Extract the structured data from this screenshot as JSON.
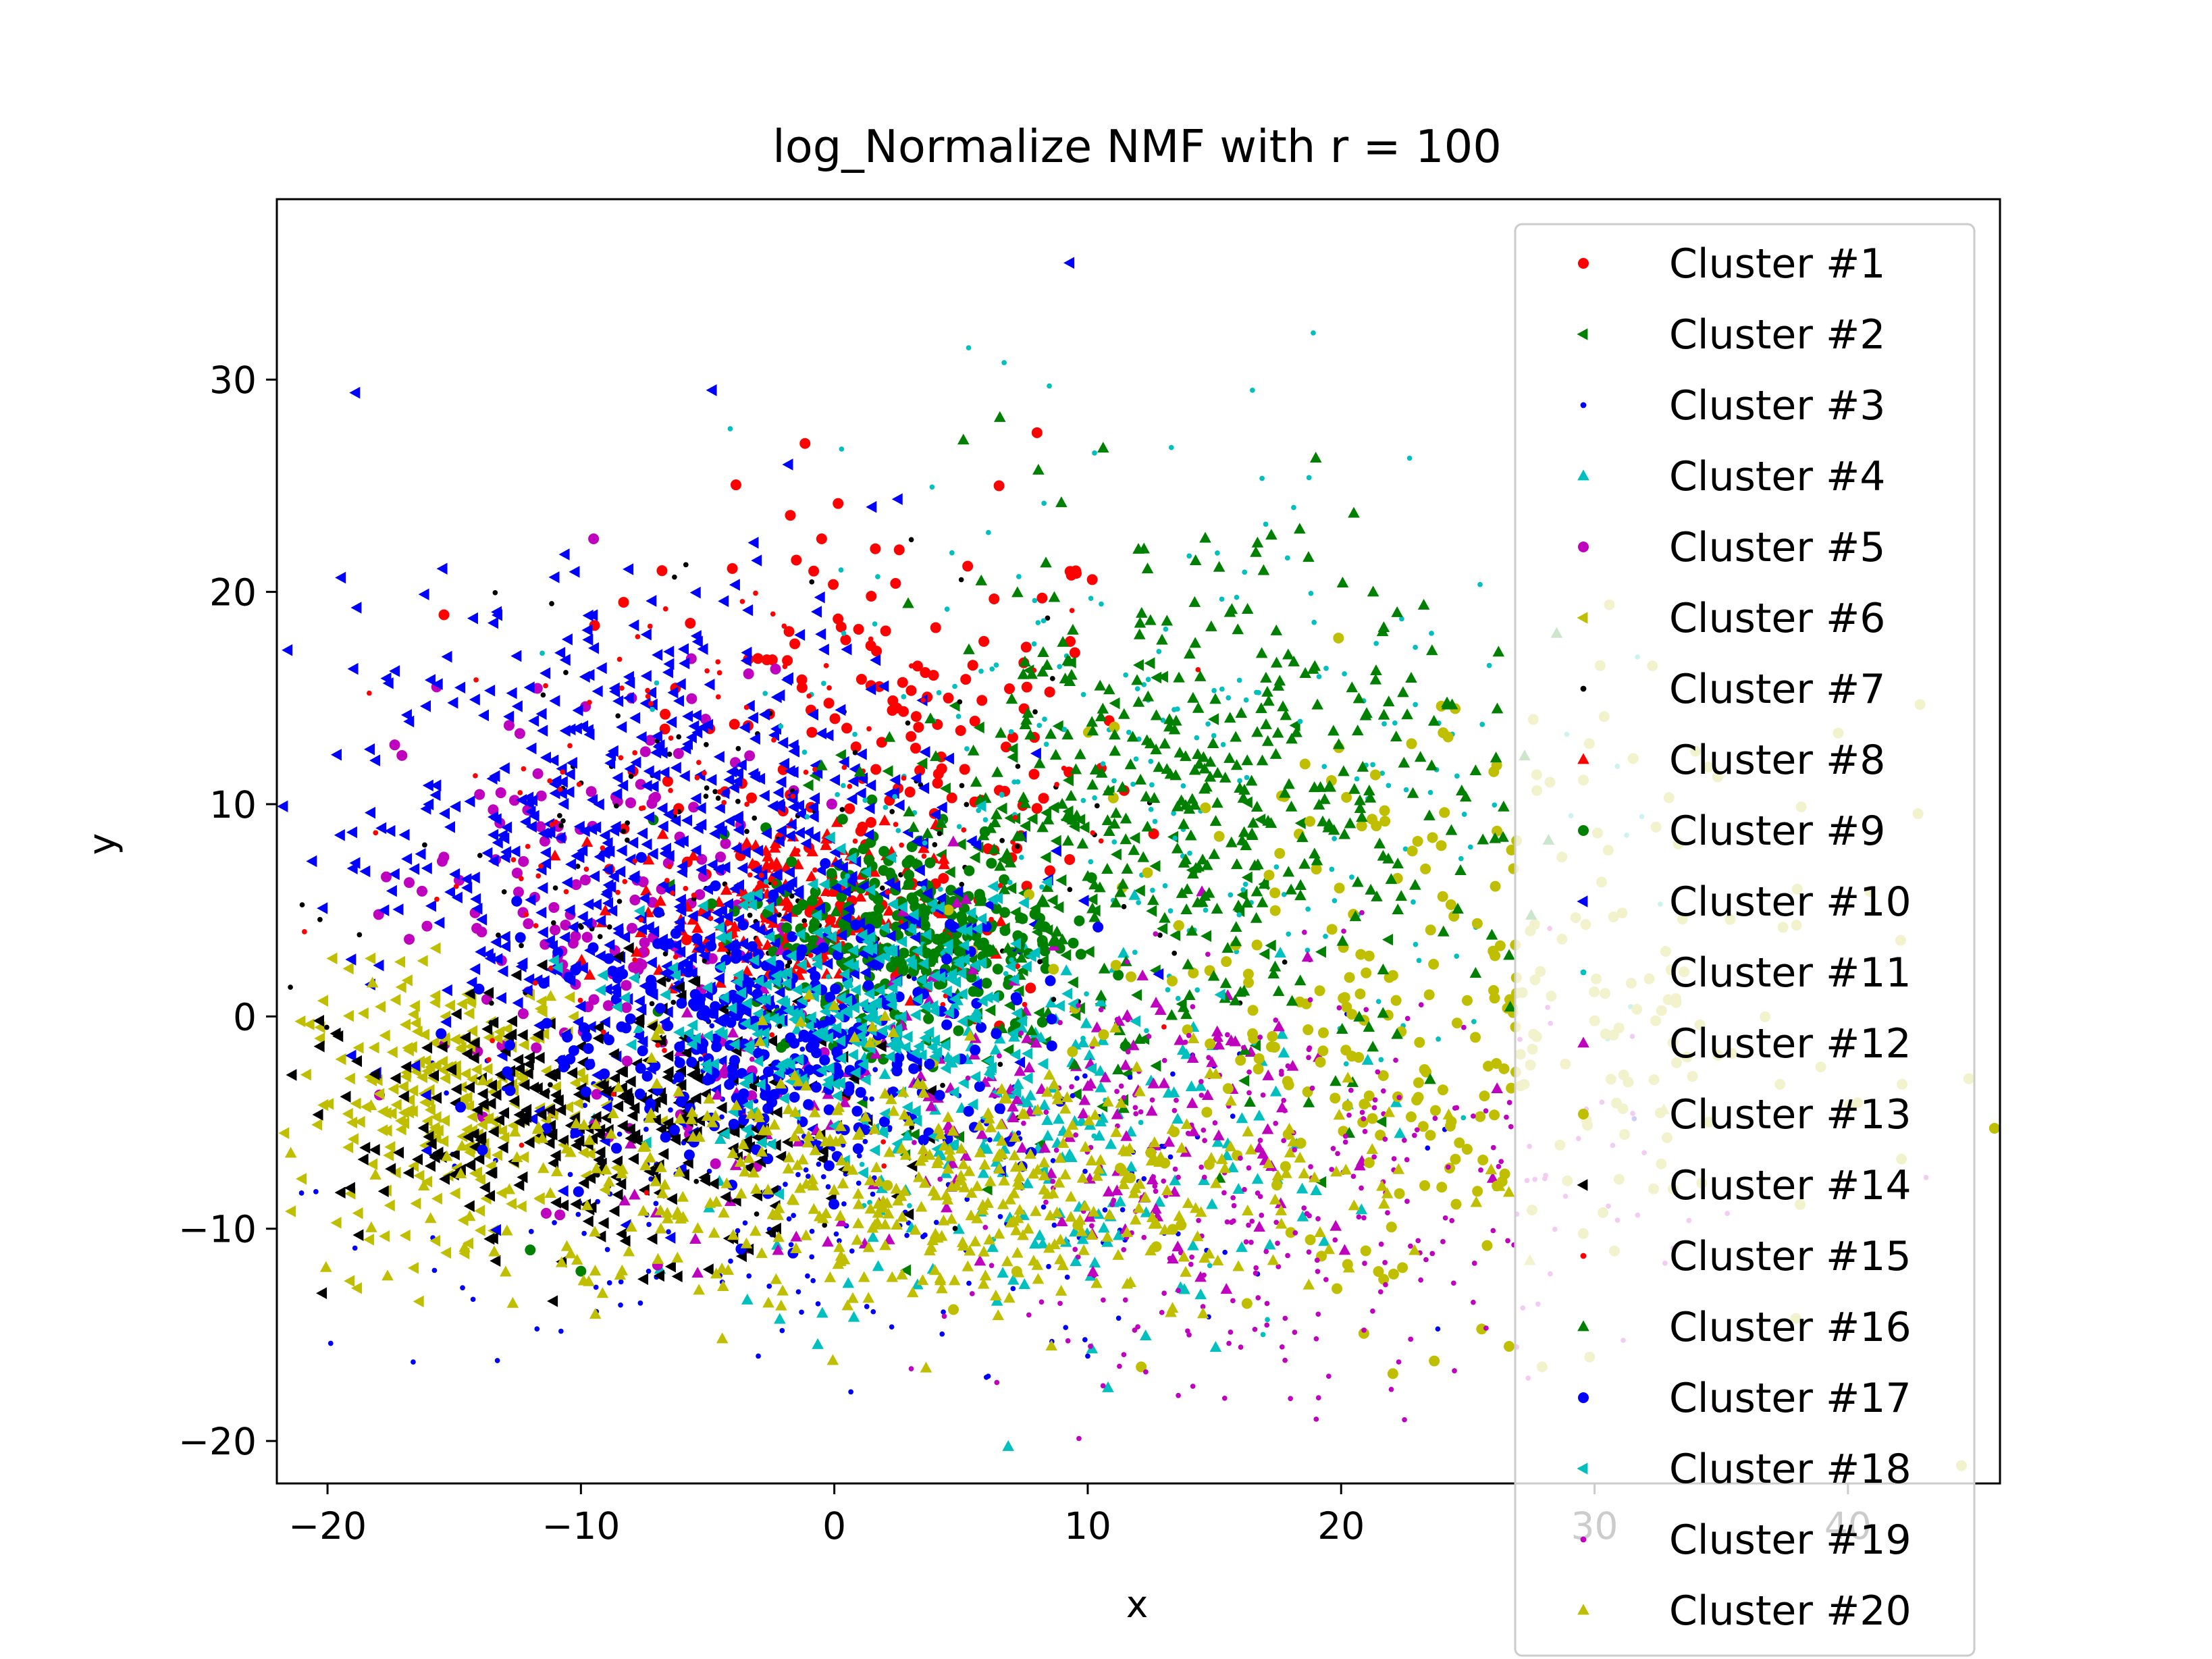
{
  "chart_data": {
    "type": "scatter",
    "title": "log_Normalize NMF with r = 100",
    "xlabel": "x",
    "ylabel": "y",
    "xlim": [
      -22,
      46
    ],
    "ylim": [
      -22,
      38.5
    ],
    "x_ticks": [
      -20,
      -10,
      0,
      10,
      20,
      30,
      40
    ],
    "y_ticks": [
      -20,
      -10,
      0,
      10,
      20,
      30
    ],
    "x_tick_labels": [
      "−20",
      "−10",
      "0",
      "10",
      "20",
      "30",
      "40"
    ],
    "y_tick_labels": [
      "−20",
      "−10",
      "0",
      "10",
      "20",
      "30"
    ],
    "grid": false,
    "legend_position": "right, overlapping plot area",
    "series": [
      {
        "name": "Cluster #1",
        "color": "#ff0000",
        "marker": "circle",
        "center": [
          2,
          12
        ],
        "spread": [
          5,
          6
        ],
        "count": 180,
        "points": [
          [
            -1.5,
            21.5
          ],
          [
            -0.5,
            22.5
          ],
          [
            6.5,
            25
          ],
          [
            8,
            27.5
          ],
          [
            -6.8,
            21
          ],
          [
            4.5,
            15
          ]
        ]
      },
      {
        "name": "Cluster #2",
        "color": "#008000",
        "marker": "triangle-left",
        "center": [
          8,
          5
        ],
        "spread": [
          5,
          5
        ],
        "count": 140,
        "points": [
          [
            13,
            16
          ],
          [
            15,
            14
          ]
        ]
      },
      {
        "name": "Cluster #3",
        "color": "#0000ff",
        "marker": "point",
        "center": [
          0,
          -8
        ],
        "spread": [
          10,
          4
        ],
        "count": 260,
        "points": [
          [
            -3,
            -16
          ],
          [
            6,
            -17
          ],
          [
            10,
            -16
          ]
        ]
      },
      {
        "name": "Cluster #4",
        "color": "#00bfbf",
        "marker": "triangle-up",
        "center": [
          8,
          -6
        ],
        "spread": [
          6,
          5
        ],
        "count": 200,
        "points": [
          [
            10.8,
            -17.5
          ]
        ]
      },
      {
        "name": "Cluster #5",
        "color": "#bf00bf",
        "marker": "circle",
        "center": [
          -9,
          4
        ],
        "spread": [
          4,
          6
        ],
        "count": 160,
        "points": [
          [
            -9.5,
            22.5
          ],
          [
            -8,
            15
          ]
        ]
      },
      {
        "name": "Cluster #6",
        "color": "#bfbf00",
        "marker": "triangle-left",
        "center": [
          -15,
          -4
        ],
        "spread": [
          3,
          3
        ],
        "count": 260,
        "points": [
          [
            -19,
            -5
          ],
          [
            -18,
            -3
          ]
        ]
      },
      {
        "name": "Cluster #7",
        "color": "#000000",
        "marker": "point",
        "center": [
          -3,
          5
        ],
        "spread": [
          7,
          6
        ],
        "count": 200,
        "points": []
      },
      {
        "name": "Cluster #8",
        "color": "#ff0000",
        "marker": "triangle-up",
        "center": [
          -2,
          5
        ],
        "spread": [
          3,
          2
        ],
        "count": 200,
        "points": []
      },
      {
        "name": "Cluster #9",
        "color": "#008000",
        "marker": "circle",
        "center": [
          3,
          4
        ],
        "spread": [
          3,
          2.5
        ],
        "count": 280,
        "points": [
          [
            -12,
            -11
          ],
          [
            -10,
            -12
          ]
        ]
      },
      {
        "name": "Cluster #10",
        "color": "#0000ff",
        "marker": "triangle-left",
        "center": [
          -7,
          8
        ],
        "spread": [
          6,
          6
        ],
        "count": 650,
        "points": [
          [
            9.3,
            35.5
          ],
          [
            -1.8,
            26
          ],
          [
            -12,
            15.5
          ],
          [
            1.5,
            24
          ]
        ]
      },
      {
        "name": "Cluster #11",
        "color": "#00bfbf",
        "marker": "point",
        "center": [
          12,
          10
        ],
        "spread": [
          8,
          8
        ],
        "count": 260,
        "points": [
          [
            5.3,
            31.5
          ],
          [
            6.7,
            30.8
          ],
          [
            18.9,
            32.2
          ],
          [
            16.5,
            29.5
          ],
          [
            22.7,
            26.3
          ],
          [
            13.3,
            26.8
          ]
        ]
      },
      {
        "name": "Cluster #12",
        "color": "#bf00bf",
        "marker": "triangle-up",
        "center": [
          8,
          -5
        ],
        "spread": [
          8,
          4
        ],
        "count": 180,
        "points": []
      },
      {
        "name": "Cluster #13",
        "color": "#bfbf00",
        "marker": "circle",
        "center": [
          24,
          0
        ],
        "spread": [
          8,
          7
        ],
        "count": 330,
        "points": [
          [
            24.5,
            14.5
          ],
          [
            38,
            6
          ]
        ]
      },
      {
        "name": "Cluster #14",
        "color": "#000000",
        "marker": "triangle-left",
        "center": [
          -9,
          -5
        ],
        "spread": [
          5,
          3
        ],
        "count": 350,
        "points": []
      },
      {
        "name": "Cluster #15",
        "color": "#ff0000",
        "marker": "point",
        "center": [
          -3,
          8
        ],
        "spread": [
          7,
          6
        ],
        "count": 160,
        "points": []
      },
      {
        "name": "Cluster #16",
        "color": "#008000",
        "marker": "triangle-up",
        "center": [
          14,
          10
        ],
        "spread": [
          6,
          6
        ],
        "count": 420,
        "points": [
          [
            19,
            26.3
          ],
          [
            16.7,
            22.3
          ],
          [
            12,
            22
          ],
          [
            20.5,
            23.7
          ]
        ]
      },
      {
        "name": "Cluster #17",
        "color": "#0000ff",
        "marker": "circle",
        "center": [
          -2,
          -1
        ],
        "spread": [
          5,
          3
        ],
        "count": 320,
        "points": []
      },
      {
        "name": "Cluster #18",
        "color": "#00bfbf",
        "marker": "triangle-left",
        "center": [
          1,
          0
        ],
        "spread": [
          4,
          3
        ],
        "count": 320,
        "points": []
      },
      {
        "name": "Cluster #19",
        "color": "#bf00bf",
        "marker": "point",
        "center": [
          18,
          -8
        ],
        "spread": [
          7,
          5
        ],
        "count": 320,
        "points": [
          [
            22.5,
            -19
          ],
          [
            18,
            -18
          ],
          [
            14,
            -15
          ]
        ]
      },
      {
        "name": "Cluster #20",
        "color": "#bfbf00",
        "marker": "triangle-up",
        "center": [
          3,
          -8
        ],
        "spread": [
          9,
          3
        ],
        "count": 500,
        "points": [
          [
            0.8,
            -1
          ],
          [
            2,
            0
          ],
          [
            -1,
            1
          ],
          [
            1.5,
            -0.5
          ],
          [
            0,
            0.5
          ]
        ]
      }
    ]
  }
}
